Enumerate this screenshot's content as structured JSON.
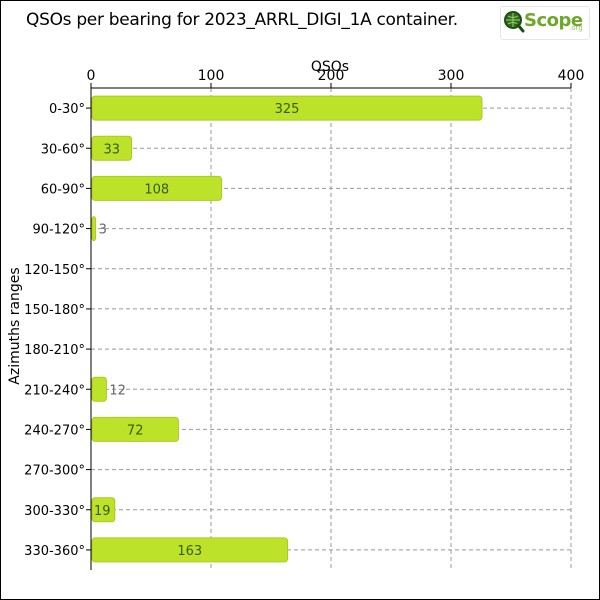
{
  "title": "QSOs per bearing for 2023_ARRL_DIGI_1A container.",
  "logo": {
    "text": "Scope",
    "sub": ".org"
  },
  "colors": {
    "bar": "#bde22a",
    "bar_stroke": "#a9cc1e",
    "grid": "#999999",
    "axis": "#000000",
    "label_in": "#3a5a12",
    "label_out": "#666666"
  },
  "chart_data": {
    "type": "bar",
    "orientation": "horizontal",
    "xlabel": "QSOs",
    "ylabel": "Azimuths ranges",
    "xlim": [
      0,
      400
    ],
    "xticks": [
      0,
      100,
      200,
      300,
      400
    ],
    "grid": true,
    "categories": [
      "0-30°",
      "30-60°",
      "60-90°",
      "90-120°",
      "120-150°",
      "150-180°",
      "180-210°",
      "210-240°",
      "240-270°",
      "270-300°",
      "300-330°",
      "330-360°"
    ],
    "values": [
      325,
      33,
      108,
      3,
      0,
      0,
      0,
      12,
      72,
      0,
      19,
      163
    ],
    "data_labels": [
      "325",
      "33",
      "108",
      "3",
      "",
      "",
      "",
      "12",
      "72",
      "",
      "19",
      "163"
    ]
  }
}
